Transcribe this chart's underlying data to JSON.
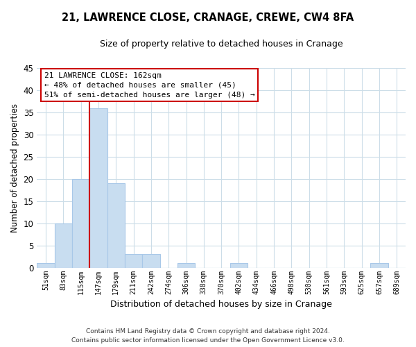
{
  "title": "21, LAWRENCE CLOSE, CRANAGE, CREWE, CW4 8FA",
  "subtitle": "Size of property relative to detached houses in Cranage",
  "xlabel": "Distribution of detached houses by size in Cranage",
  "ylabel": "Number of detached properties",
  "bar_labels": [
    "51sqm",
    "83sqm",
    "115sqm",
    "147sqm",
    "179sqm",
    "211sqm",
    "242sqm",
    "274sqm",
    "306sqm",
    "338sqm",
    "370sqm",
    "402sqm",
    "434sqm",
    "466sqm",
    "498sqm",
    "530sqm",
    "561sqm",
    "593sqm",
    "625sqm",
    "657sqm",
    "689sqm"
  ],
  "bar_values": [
    1,
    10,
    20,
    36,
    19,
    3,
    3,
    0,
    1,
    0,
    0,
    1,
    0,
    0,
    0,
    0,
    0,
    0,
    0,
    1,
    0
  ],
  "bar_color": "#c8ddf0",
  "bar_edge_color": "#a8c8e8",
  "vline_color": "#cc0000",
  "ylim": [
    0,
    45
  ],
  "yticks": [
    0,
    5,
    10,
    15,
    20,
    25,
    30,
    35,
    40,
    45
  ],
  "annotation_title": "21 LAWRENCE CLOSE: 162sqm",
  "annotation_line1": "← 48% of detached houses are smaller (45)",
  "annotation_line2": "51% of semi-detached houses are larger (48) →",
  "annotation_box_color": "#ffffff",
  "annotation_box_edge": "#cc0000",
  "footer_line1": "Contains HM Land Registry data © Crown copyright and database right 2024.",
  "footer_line2": "Contains public sector information licensed under the Open Government Licence v3.0.",
  "background_color": "#ffffff",
  "grid_color": "#ccdde8"
}
